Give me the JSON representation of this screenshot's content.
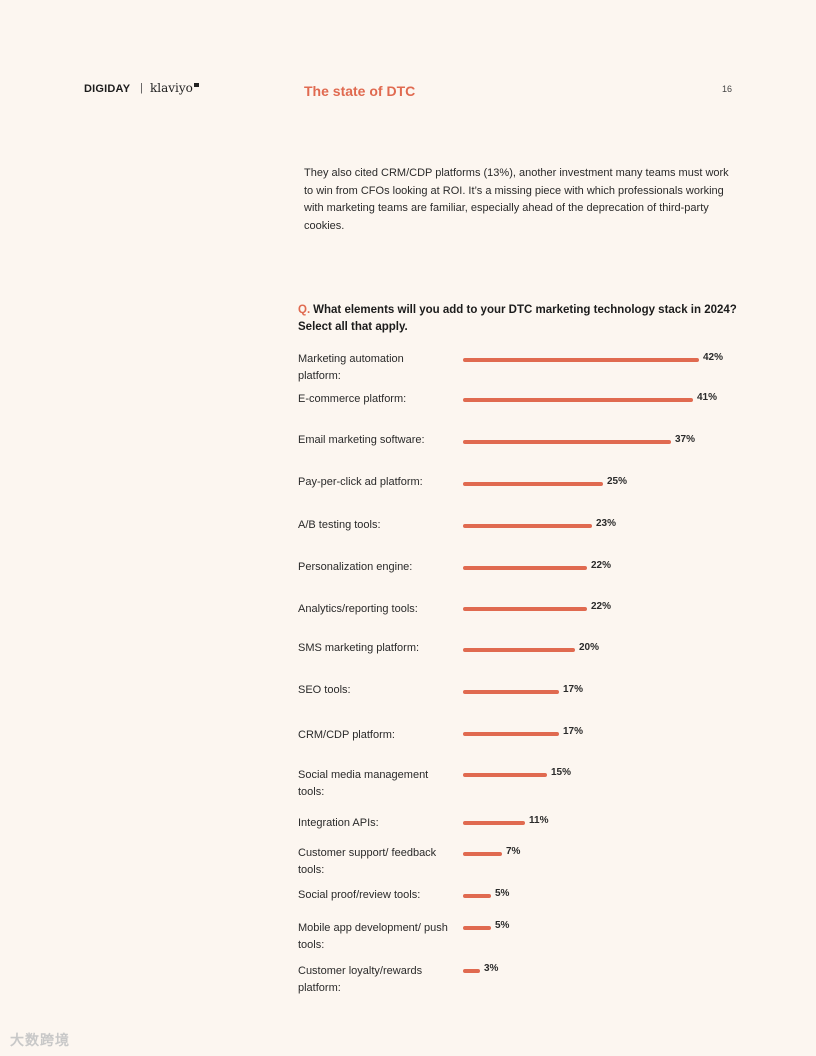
{
  "header": {
    "brand_digiday": "DIGIDAY",
    "brand_separator": "|",
    "brand_klaviyo": "klaviyo",
    "section_title": "The state of DTC",
    "page_number": "16"
  },
  "body_paragraph": "They also cited CRM/CDP platforms (13%), another investment many teams must work to win from CFOs looking at ROI. It’s a missing piece with which professionals working with marketing teams are familiar, especially ahead of the deprecation of third-party cookies.",
  "question": {
    "prefix": "Q.",
    "text": "What elements will you add to your DTC marketing technology stack in 2024? Select all that apply."
  },
  "watermark": "大数跨境",
  "colors": {
    "accent": "#e06a50",
    "background": "#fcf6f0"
  },
  "chart_data": {
    "type": "bar",
    "orientation": "horizontal",
    "title": "What elements will you add to your DTC marketing technology stack in 2024? Select all that apply.",
    "unit": "%",
    "xlim": [
      0,
      42
    ],
    "categories": [
      "Marketing automation platform:",
      "E-commerce platform:",
      "Email marketing software:",
      "Pay-per-click ad platform:",
      "A/B testing tools:",
      "Personalization engine:",
      "Analytics/reporting tools:",
      "SMS marketing platform:",
      "SEO tools:",
      "CRM/CDP platform:",
      "Social media management tools:",
      "Integration APIs:",
      "Customer support/ feedback tools:",
      "Social proof/review tools:",
      "Mobile app development/ push tools:",
      "Customer loyalty/rewards platform:"
    ],
    "values": [
      42,
      41,
      37,
      25,
      23,
      22,
      22,
      20,
      17,
      17,
      15,
      11,
      7,
      5,
      5,
      3
    ],
    "value_labels": [
      "42%",
      "41%",
      "37%",
      "25%",
      "23%",
      "22%",
      "22%",
      "20%",
      "17%",
      "17%",
      "15%",
      "11%",
      "7%",
      "5%",
      "5%",
      "3%"
    ]
  }
}
